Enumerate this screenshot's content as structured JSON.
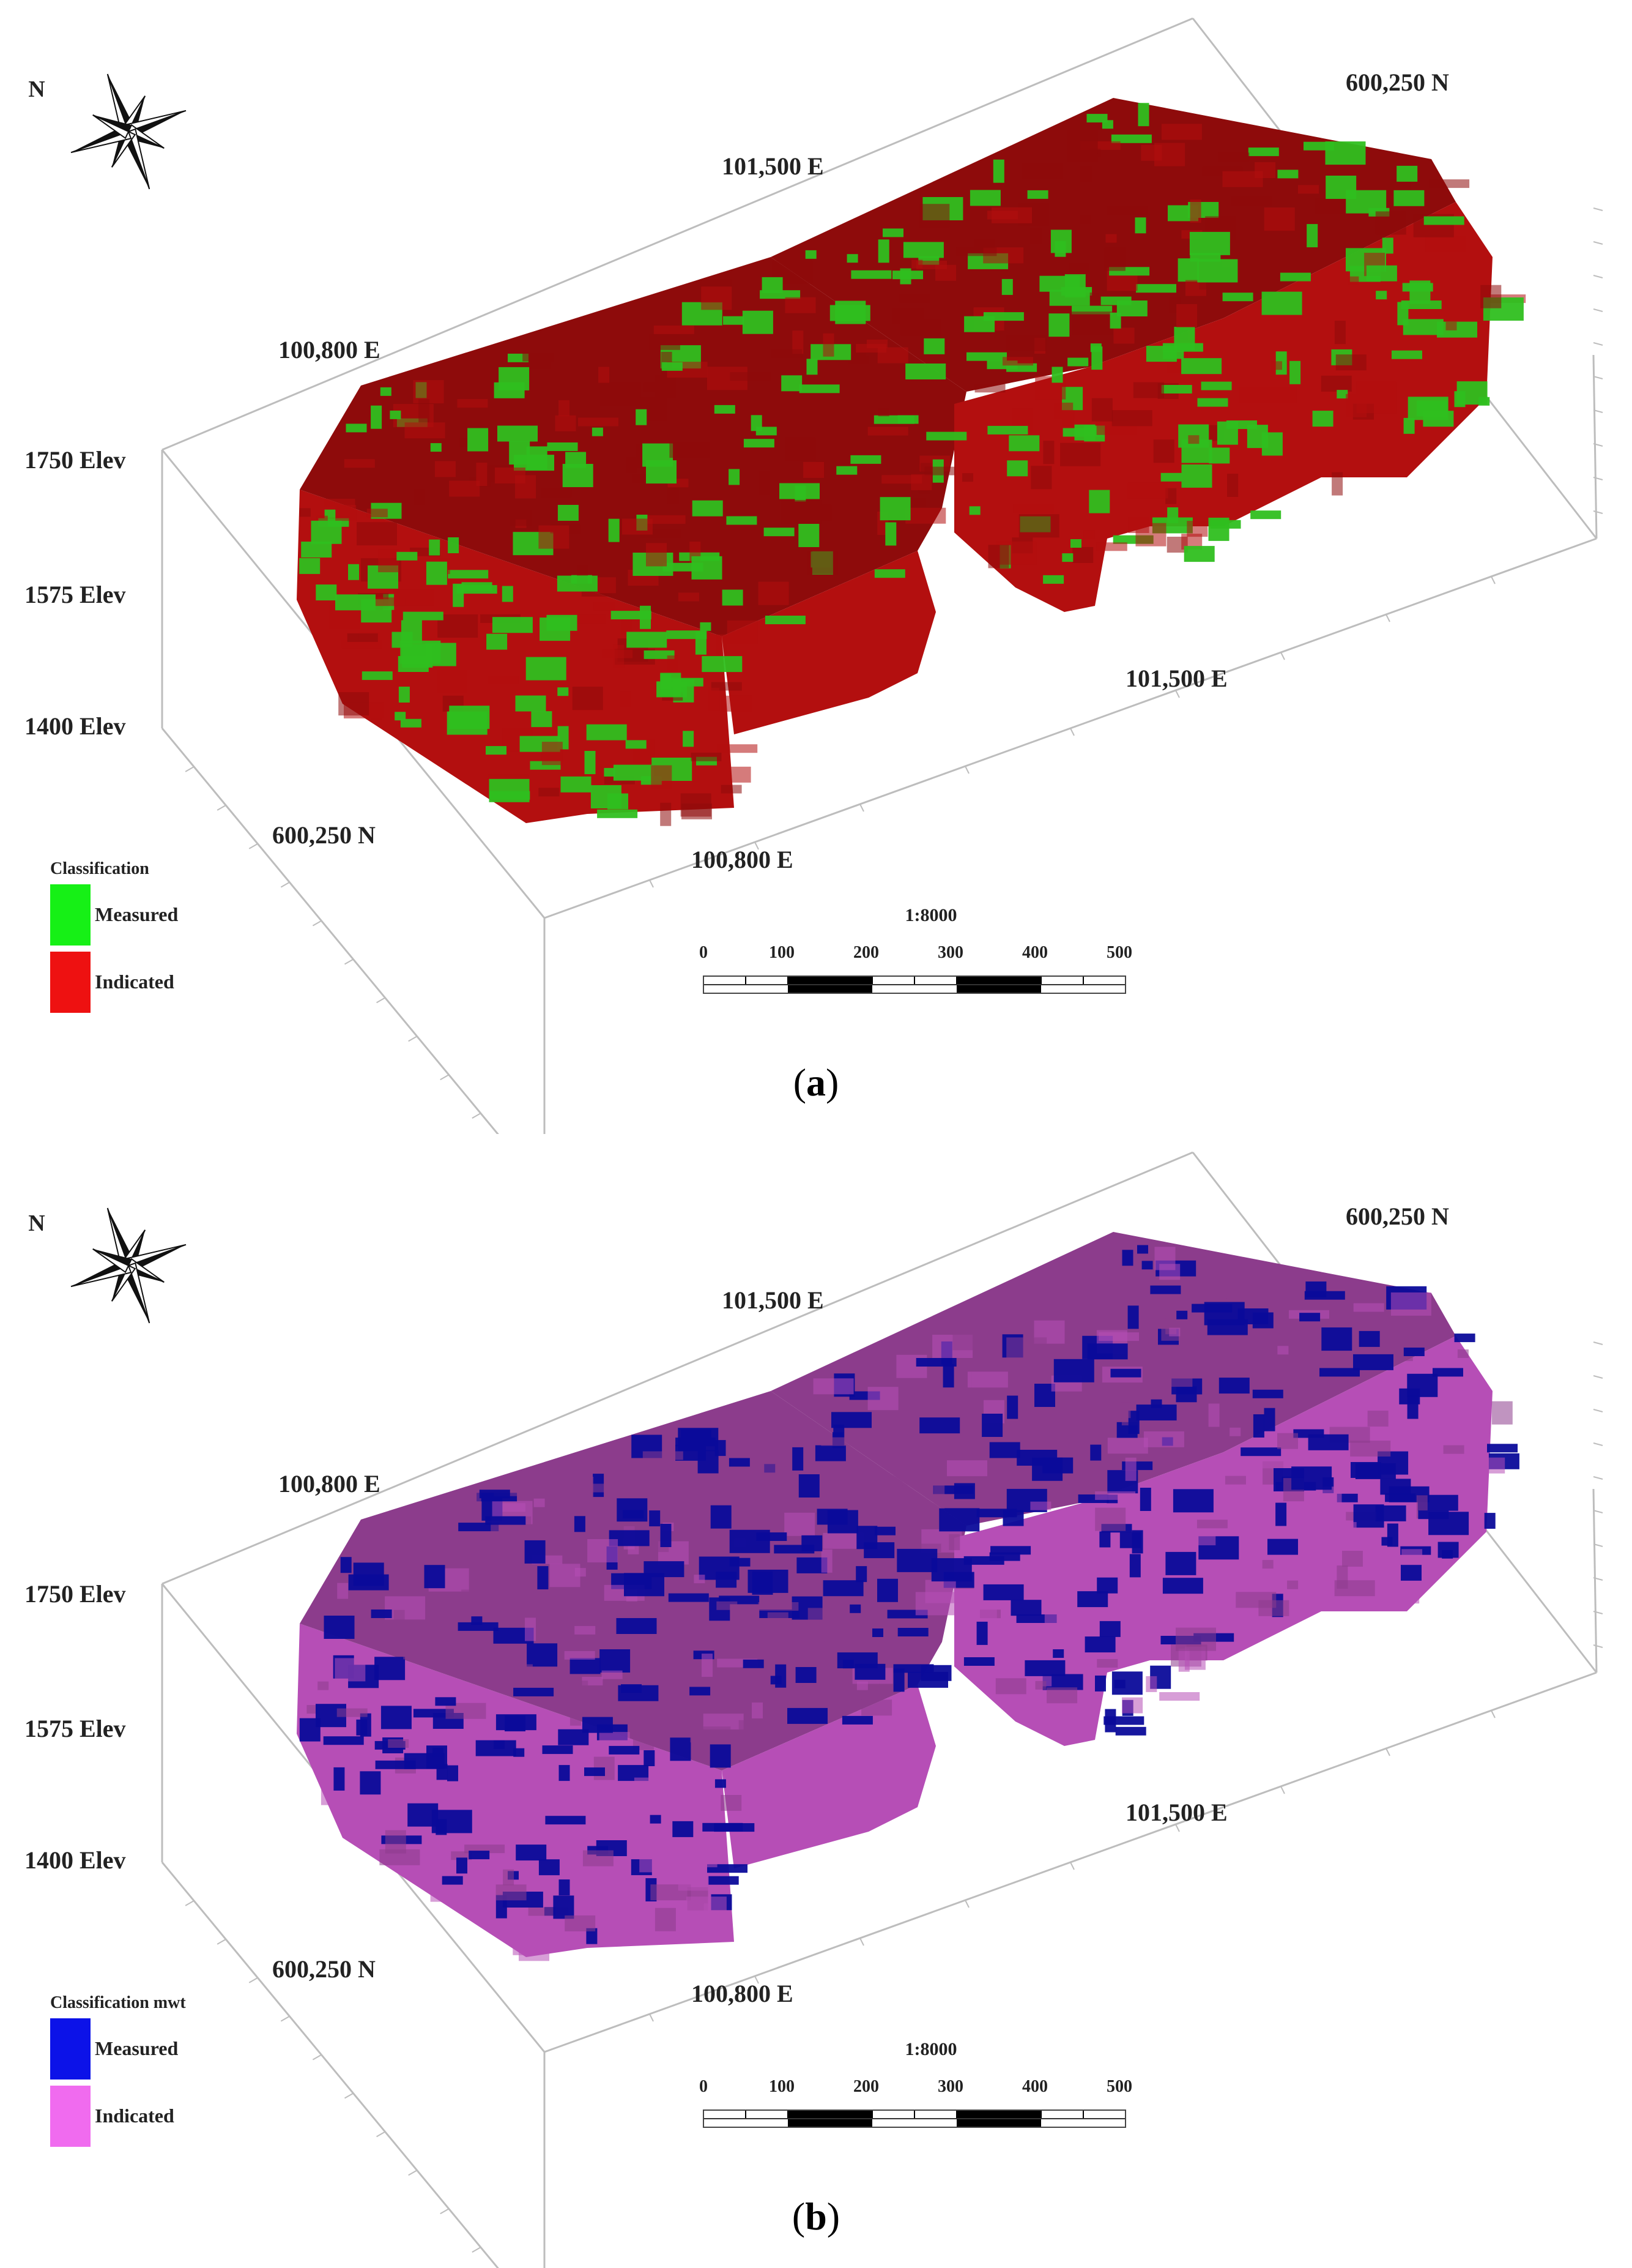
{
  "panels": [
    {
      "id": "a",
      "caption_letter": "a",
      "colors": {
        "measured": "#2fbf1f",
        "indicated": "#b30f0f",
        "measured_legend": "#16f016",
        "indicated_legend": "#ee1111",
        "top_shade": "#8e0b0b"
      },
      "north_label": "N",
      "grid_labels": {
        "e_top_right": "101,500 E",
        "e_top_left": "100,800 E",
        "n_top": "600,250 N",
        "e_bottom_right": "101,500 E",
        "e_bottom_left": "100,800 E",
        "n_bottom": "600,250 N"
      },
      "elevation_labels": [
        "1750 Elev",
        "1575 Elev",
        "1400 Elev"
      ],
      "legend": {
        "title": "Classification",
        "items": [
          {
            "label": "Measured"
          },
          {
            "label": "Indicated"
          }
        ]
      },
      "scale_bar": {
        "ratio": "1:8000",
        "ticks": [
          "0",
          "100",
          "200",
          "300",
          "400",
          "500"
        ]
      }
    },
    {
      "id": "b",
      "caption_letter": "b",
      "colors": {
        "measured": "#0b0b9a",
        "indicated": "#b64eb6",
        "measured_legend": "#0c12e8",
        "indicated_legend": "#f06bef",
        "top_shade": "#8c3c8c"
      },
      "north_label": "N",
      "grid_labels": {
        "e_top_right": "101,500 E",
        "e_top_left": "100,800 E",
        "n_top": "600,250 N",
        "e_bottom_right": "101,500 E",
        "e_bottom_left": "100,800 E",
        "n_bottom": "600,250 N"
      },
      "elevation_labels": [
        "1750 Elev",
        "1575 Elev",
        "1400 Elev"
      ],
      "legend": {
        "title": "Classification mwt",
        "items": [
          {
            "label": "Measured"
          },
          {
            "label": "Indicated"
          }
        ]
      },
      "scale_bar": {
        "ratio": "1:8000",
        "ticks": [
          "0",
          "100",
          "200",
          "300",
          "400",
          "500"
        ]
      }
    }
  ]
}
